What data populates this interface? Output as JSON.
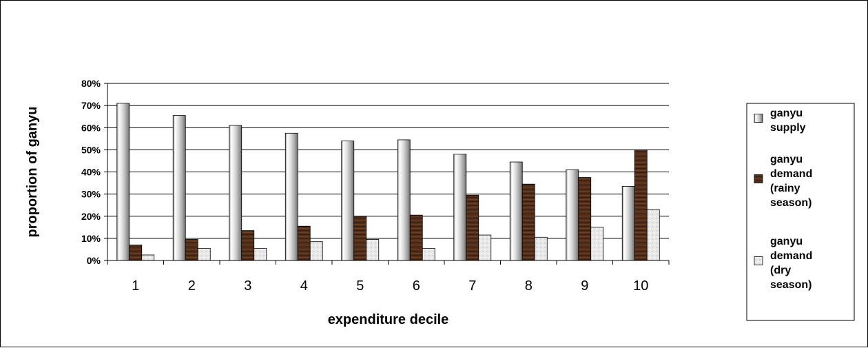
{
  "chart_data": {
    "type": "bar",
    "title": "",
    "xlabel": "expenditure decile",
    "ylabel": "proportion of ganyu",
    "categories": [
      "1",
      "2",
      "3",
      "4",
      "5",
      "6",
      "7",
      "8",
      "9",
      "10"
    ],
    "ylim": [
      0,
      0.8
    ],
    "y_ticks": [
      "0%",
      "10%",
      "20%",
      "30%",
      "40%",
      "50%",
      "60%",
      "70%",
      "80%"
    ],
    "grid": true,
    "legend_position": "right",
    "series": [
      {
        "name": "ganyu supply",
        "legend_lines": [
          "ganyu",
          "supply"
        ],
        "values": [
          0.71,
          0.655,
          0.61,
          0.575,
          0.54,
          0.545,
          0.48,
          0.445,
          0.41,
          0.335
        ],
        "style": "silver-gradient"
      },
      {
        "name": "ganyu demand (rainy season)",
        "legend_lines": [
          "ganyu",
          "demand",
          "(rainy",
          "season)"
        ],
        "values": [
          0.07,
          0.095,
          0.135,
          0.155,
          0.2,
          0.205,
          0.295,
          0.345,
          0.375,
          0.5
        ],
        "style": "brown-wood"
      },
      {
        "name": "ganyu demand (dry season)",
        "legend_lines": [
          "ganyu",
          "demand",
          "(dry",
          "season)"
        ],
        "values": [
          0.025,
          0.055,
          0.055,
          0.085,
          0.095,
          0.055,
          0.115,
          0.105,
          0.15,
          0.23
        ],
        "style": "light-gray"
      }
    ]
  }
}
